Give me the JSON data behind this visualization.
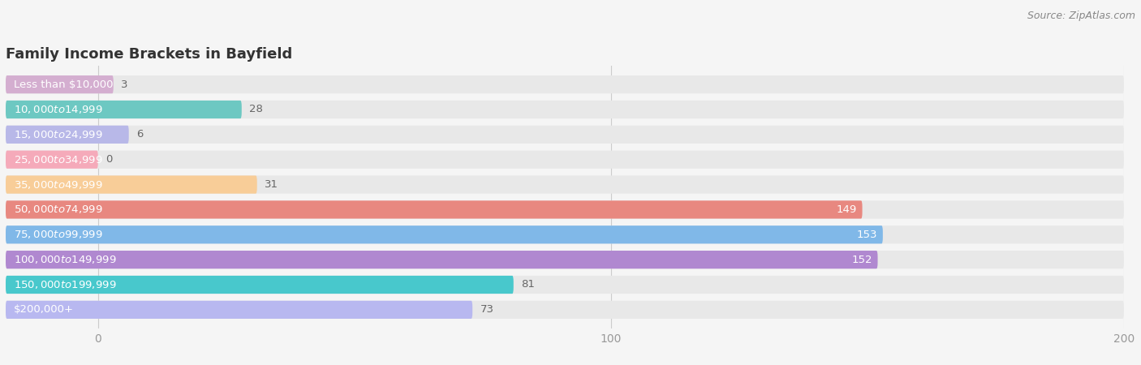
{
  "title": "Family Income Brackets in Bayfield",
  "source": "Source: ZipAtlas.com",
  "categories": [
    "Less than $10,000",
    "$10,000 to $14,999",
    "$15,000 to $24,999",
    "$25,000 to $34,999",
    "$35,000 to $49,999",
    "$50,000 to $74,999",
    "$75,000 to $99,999",
    "$100,000 to $149,999",
    "$150,000 to $199,999",
    "$200,000+"
  ],
  "values": [
    3,
    28,
    6,
    0,
    31,
    149,
    153,
    152,
    81,
    73
  ],
  "bar_colors": [
    "#d4aed0",
    "#6dc8c2",
    "#b8b8e8",
    "#f5aaba",
    "#f8cd98",
    "#e88880",
    "#80b8e8",
    "#b088d0",
    "#48c8cc",
    "#b8b8f0"
  ],
  "background_color": "#f5f5f5",
  "row_bg_color": "#e8e8e8",
  "xlim": [
    -18,
    200
  ],
  "data_xlim": [
    0,
    200
  ],
  "xticks": [
    0,
    100,
    200
  ],
  "title_fontsize": 13,
  "label_fontsize": 9.5,
  "value_fontsize": 9.5,
  "bar_height": 0.72
}
